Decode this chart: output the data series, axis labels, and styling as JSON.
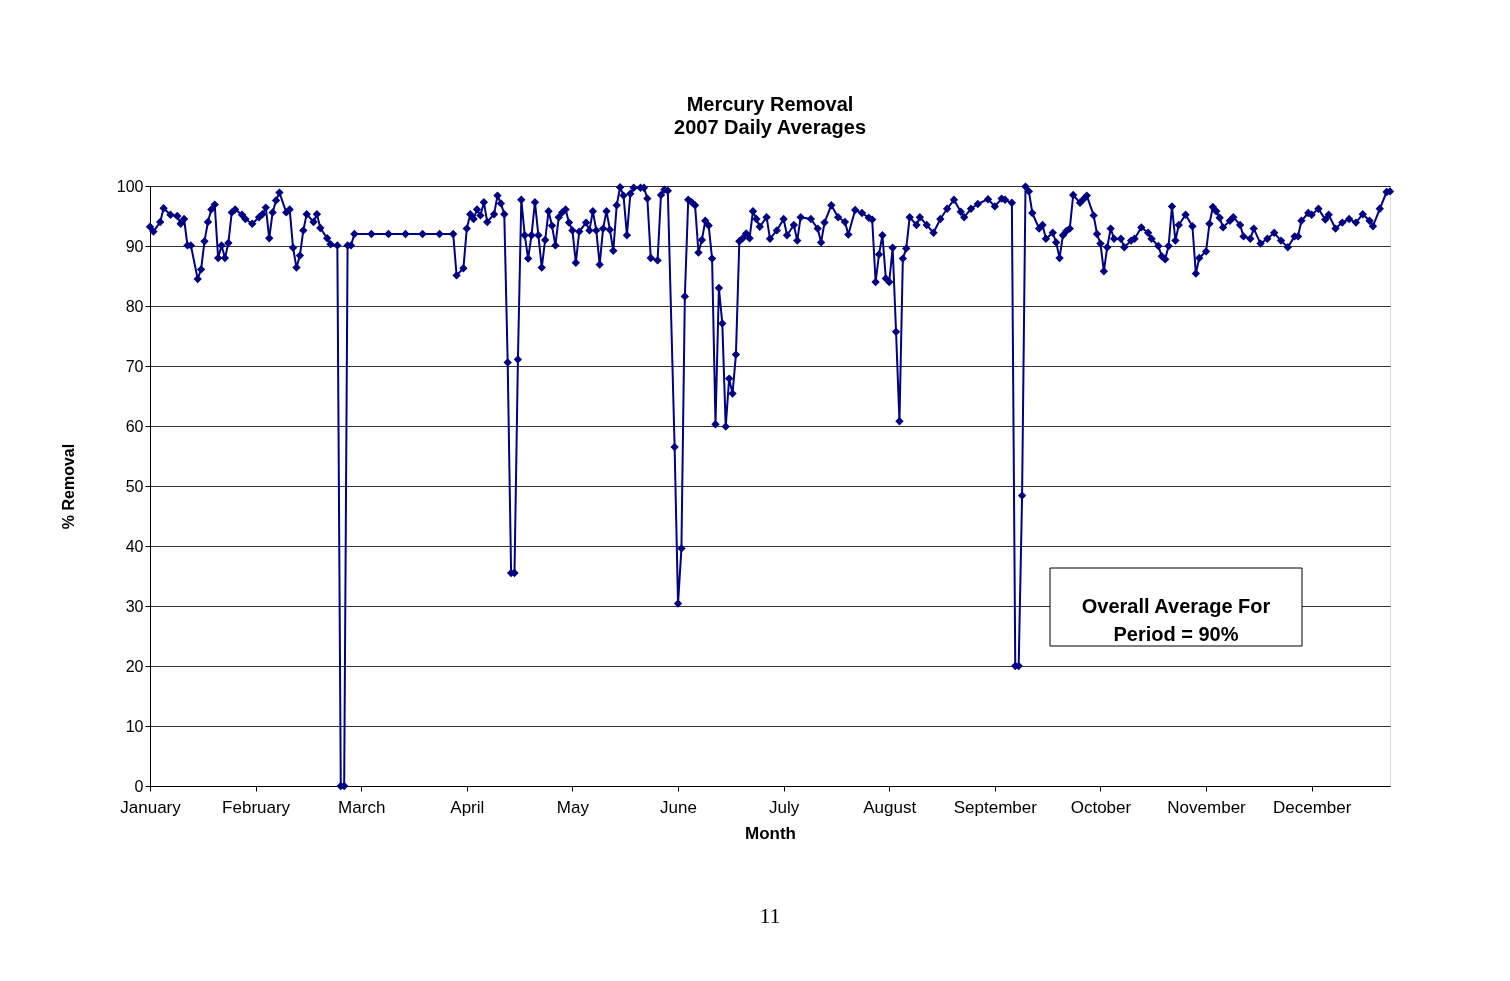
{
  "chart_data": {
    "type": "line",
    "title": "Mercury Removal",
    "subtitle": "2007 Daily Averages",
    "xlabel": "Month",
    "ylabel": "% Removal",
    "x": [
      "2007-01-01",
      "2007-01-02",
      "2007-01-04",
      "2007-01-05",
      "2007-01-07",
      "2007-01-09",
      "2007-01-10",
      "2007-01-11",
      "2007-01-12",
      "2007-01-13",
      "2007-01-15",
      "2007-01-16",
      "2007-01-17",
      "2007-01-18",
      "2007-01-19",
      "2007-01-20",
      "2007-01-21",
      "2007-01-22",
      "2007-01-23",
      "2007-01-24",
      "2007-01-25",
      "2007-01-26",
      "2007-01-28",
      "2007-01-29",
      "2007-01-31",
      "2007-02-02",
      "2007-02-03",
      "2007-02-04",
      "2007-02-05",
      "2007-02-06",
      "2007-02-07",
      "2007-02-08",
      "2007-02-10",
      "2007-02-11",
      "2007-02-12",
      "2007-02-13",
      "2007-02-14",
      "2007-02-15",
      "2007-02-16",
      "2007-02-18",
      "2007-02-19",
      "2007-02-20",
      "2007-02-22",
      "2007-02-23",
      "2007-02-25",
      "2007-02-26",
      "2007-02-27",
      "2007-02-28",
      "2007-03-01",
      "2007-03-02",
      "2007-03-07",
      "2007-03-12",
      "2007-03-17",
      "2007-03-22",
      "2007-03-27",
      "2007-03-31",
      "2007-04-01",
      "2007-04-03",
      "2007-04-04",
      "2007-04-05",
      "2007-04-06",
      "2007-04-07",
      "2007-04-08",
      "2007-04-09",
      "2007-04-10",
      "2007-04-12",
      "2007-04-13",
      "2007-04-14",
      "2007-04-15",
      "2007-04-16",
      "2007-04-17",
      "2007-04-18",
      "2007-04-19",
      "2007-04-20",
      "2007-04-21",
      "2007-04-22",
      "2007-04-23",
      "2007-04-24",
      "2007-04-25",
      "2007-04-26",
      "2007-04-27",
      "2007-04-28",
      "2007-04-29",
      "2007-04-30",
      "2007-05-01",
      "2007-05-02",
      "2007-05-03",
      "2007-05-04",
      "2007-05-05",
      "2007-05-06",
      "2007-05-07",
      "2007-05-09",
      "2007-05-10",
      "2007-05-11",
      "2007-05-12",
      "2007-05-13",
      "2007-05-14",
      "2007-05-15",
      "2007-05-16",
      "2007-05-17",
      "2007-05-18",
      "2007-05-19",
      "2007-05-20",
      "2007-05-21",
      "2007-05-22",
      "2007-05-23",
      "2007-05-25",
      "2007-05-26",
      "2007-05-27",
      "2007-05-28",
      "2007-05-30",
      "2007-05-31",
      "2007-06-01",
      "2007-06-02",
      "2007-06-04",
      "2007-06-05",
      "2007-06-06",
      "2007-06-07",
      "2007-06-08",
      "2007-06-09",
      "2007-06-10",
      "2007-06-11",
      "2007-06-12",
      "2007-06-13",
      "2007-06-14",
      "2007-06-15",
      "2007-06-16",
      "2007-06-17",
      "2007-06-18",
      "2007-06-19",
      "2007-06-20",
      "2007-06-21",
      "2007-06-22",
      "2007-06-23",
      "2007-06-24",
      "2007-06-25",
      "2007-06-26",
      "2007-06-27",
      "2007-06-28",
      "2007-06-29",
      "2007-07-01",
      "2007-07-02",
      "2007-07-04",
      "2007-07-06",
      "2007-07-07",
      "2007-07-09",
      "2007-07-10",
      "2007-07-11",
      "2007-07-14",
      "2007-07-16",
      "2007-07-17",
      "2007-07-18",
      "2007-07-20",
      "2007-07-22",
      "2007-07-24",
      "2007-07-25",
      "2007-07-27",
      "2007-07-29",
      "2007-07-31",
      "2007-08-01",
      "2007-08-02",
      "2007-08-03",
      "2007-08-04",
      "2007-08-05",
      "2007-08-06",
      "2007-08-07",
      "2007-08-08",
      "2007-08-09",
      "2007-08-10",
      "2007-08-11",
      "2007-08-12",
      "2007-08-14",
      "2007-08-15",
      "2007-08-17",
      "2007-08-19",
      "2007-08-21",
      "2007-08-23",
      "2007-08-25",
      "2007-08-27",
      "2007-08-28",
      "2007-08-30",
      "2007-09-01",
      "2007-09-04",
      "2007-09-06",
      "2007-09-08",
      "2007-09-09",
      "2007-09-11",
      "2007-09-12",
      "2007-09-13",
      "2007-09-14",
      "2007-09-15",
      "2007-09-16",
      "2007-09-17",
      "2007-09-19",
      "2007-09-20",
      "2007-09-21",
      "2007-09-23",
      "2007-09-24",
      "2007-09-25",
      "2007-09-26",
      "2007-09-27",
      "2007-09-28",
      "2007-09-29",
      "2007-10-01",
      "2007-10-02",
      "2007-10-03",
      "2007-10-05",
      "2007-10-06",
      "2007-10-07",
      "2007-10-08",
      "2007-10-09",
      "2007-10-10",
      "2007-10-11",
      "2007-10-13",
      "2007-10-14",
      "2007-10-16",
      "2007-10-17",
      "2007-10-19",
      "2007-10-21",
      "2007-10-22",
      "2007-10-24",
      "2007-10-25",
      "2007-10-26",
      "2007-10-27",
      "2007-10-28",
      "2007-10-29",
      "2007-10-30",
      "2007-11-01",
      "2007-11-03",
      "2007-11-04",
      "2007-11-05",
      "2007-11-07",
      "2007-11-08",
      "2007-11-09",
      "2007-11-10",
      "2007-11-11",
      "2007-11-12",
      "2007-11-14",
      "2007-11-15",
      "2007-11-17",
      "2007-11-18",
      "2007-11-20",
      "2007-11-21",
      "2007-11-23",
      "2007-11-25",
      "2007-11-27",
      "2007-11-29",
      "2007-12-01",
      "2007-12-03",
      "2007-12-04",
      "2007-12-05",
      "2007-12-07",
      "2007-12-08",
      "2007-12-10",
      "2007-12-12",
      "2007-12-13",
      "2007-12-15",
      "2007-12-17",
      "2007-12-19",
      "2007-12-21",
      "2007-12-23",
      "2007-12-25",
      "2007-12-26",
      "2007-12-28",
      "2007-12-30",
      "2007-12-31"
    ],
    "series": [
      {
        "color": "#000080",
        "values": [
          93.2,
          92.4,
          94,
          96.3,
          95.2,
          95,
          93.7,
          94.5,
          90.1,
          90.1,
          84.5,
          86.1,
          90.8,
          94,
          96.1,
          96.9,
          88,
          90.1,
          88,
          90.5,
          95.6,
          96.1,
          95.2,
          94.5,
          93.7,
          94.8,
          95.3,
          96.4,
          91.3,
          95.6,
          97.6,
          98.9,
          95.6,
          96.1,
          89.7,
          86.4,
          88.4,
          92.6,
          95.3,
          94,
          95.3,
          93,
          91.3,
          90.3,
          90.1,
          0,
          0,
          90.1,
          90.1,
          92,
          92,
          92,
          92,
          92,
          92,
          92,
          85.1,
          86.3,
          92.9,
          95.3,
          94.5,
          96.1,
          95.1,
          97.3,
          94,
          95.3,
          98.4,
          97.1,
          95.3,
          70.6,
          35.5,
          35.5,
          71.1,
          97.7,
          91.8,
          87.9,
          91.8,
          97.3,
          91.8,
          86.4,
          91,
          95.8,
          93.4,
          90.1,
          94.8,
          95.6,
          96.1,
          93.9,
          92.6,
          87.2,
          92.4,
          93.9,
          92.6,
          95.8,
          92.6,
          86.9,
          92.9,
          95.8,
          92.7,
          89.2,
          96.8,
          99.8,
          98.4,
          91.8,
          98.7,
          99.7,
          99.7,
          99.7,
          97.9,
          88,
          87.6,
          98.5,
          99.4,
          99.2,
          56.5,
          30.4,
          39.6,
          81.6,
          97.7,
          97.3,
          96.8,
          88.9,
          91,
          94.2,
          93.4,
          87.9,
          60.3,
          83,
          77.1,
          59.9,
          67.9,
          65.4,
          71.9,
          90.8,
          91.3,
          92.1,
          91.3,
          95.8,
          94.5,
          93.2,
          94.8,
          91.2,
          92.6,
          94.5,
          91.8,
          93.5,
          90.9,
          94.8,
          94.5,
          92.9,
          90.6,
          93.9,
          96.8,
          94.8,
          94,
          91.9,
          96,
          95.5,
          94.7,
          94.4,
          84,
          88.6,
          91.8,
          84.6,
          84,
          89.7,
          75.7,
          60.8,
          87.9,
          89.6,
          94.8,
          93.5,
          94.8,
          93.5,
          92.2,
          94.5,
          96.2,
          97.7,
          95.7,
          94.8,
          96.2,
          97,
          97.8,
          96.6,
          97.9,
          97.7,
          97.2,
          20,
          20,
          48.4,
          99.9,
          99.1,
          95.5,
          92.9,
          93.5,
          91.2,
          92.2,
          90.6,
          88,
          91.8,
          92.5,
          92.9,
          98.5,
          97.2,
          97.8,
          98.4,
          95.1,
          92,
          90.4,
          85.8,
          89.8,
          92.9,
          91.2,
          91.2,
          89.8,
          90.9,
          91.2,
          93.1,
          92.2,
          91.2,
          90,
          88.3,
          87.8,
          90,
          96.6,
          90.9,
          93.5,
          95.2,
          93.3,
          85.4,
          88,
          89.1,
          93.7,
          96.5,
          95.8,
          94.7,
          93.1,
          94.2,
          94.8,
          93.5,
          91.6,
          91.2,
          92.9,
          90.4,
          91.2,
          92.2,
          90.9,
          89.8,
          91.6,
          91.6,
          94.2,
          95.5,
          95.2,
          96.2,
          94.4,
          95.2,
          92.9,
          93.9,
          94.5,
          93.9,
          95.3,
          94.2,
          93.3,
          96.2,
          99,
          99.1
        ]
      }
    ],
    "xlim": [
      "2007-01-01",
      "2007-12-31"
    ],
    "xticks": [
      {
        "value": "2007-01-01",
        "label": "January"
      },
      {
        "value": "2007-02-01",
        "label": "February"
      },
      {
        "value": "2007-03-04",
        "label": "March"
      },
      {
        "value": "2007-04-04",
        "label": "April"
      },
      {
        "value": "2007-05-05",
        "label": "May"
      },
      {
        "value": "2007-06-05",
        "label": "June"
      },
      {
        "value": "2007-07-06",
        "label": "July"
      },
      {
        "value": "2007-08-06",
        "label": "August"
      },
      {
        "value": "2007-09-06",
        "label": "September"
      },
      {
        "value": "2007-10-07",
        "label": "October"
      },
      {
        "value": "2007-11-07",
        "label": "November"
      },
      {
        "value": "2007-12-08",
        "label": "December"
      }
    ],
    "ylim": [
      0,
      100
    ],
    "yticks": [
      0,
      10,
      20,
      30,
      40,
      50,
      60,
      70,
      80,
      90,
      100
    ],
    "grid": "y",
    "marker": "diamond",
    "line_style": "solid",
    "annotations": [
      "Overall Average For\nPeriod = 90%",
      "11"
    ]
  }
}
